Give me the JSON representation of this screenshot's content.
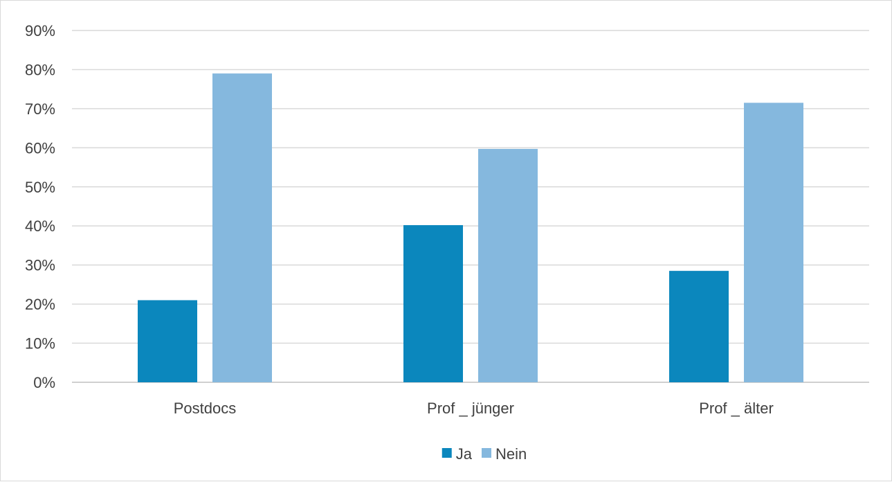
{
  "chart_data": {
    "type": "bar",
    "categories": [
      "Postdocs",
      "Prof _ jünger",
      "Prof _ älter"
    ],
    "series": [
      {
        "name": "Ja",
        "values": [
          21,
          40.2,
          28.5
        ],
        "color": "#0b87bd"
      },
      {
        "name": "Nein",
        "values": [
          79,
          59.7,
          71.5
        ],
        "color": "#85b8de"
      }
    ],
    "y_ticks": [
      "0%",
      "10%",
      "20%",
      "30%",
      "40%",
      "50%",
      "60%",
      "70%",
      "80%",
      "90%"
    ],
    "ylim": [
      0,
      90
    ],
    "y_unit": "%",
    "grid": true,
    "legend_position": "bottom",
    "title": "",
    "xlabel": "",
    "ylabel": ""
  }
}
